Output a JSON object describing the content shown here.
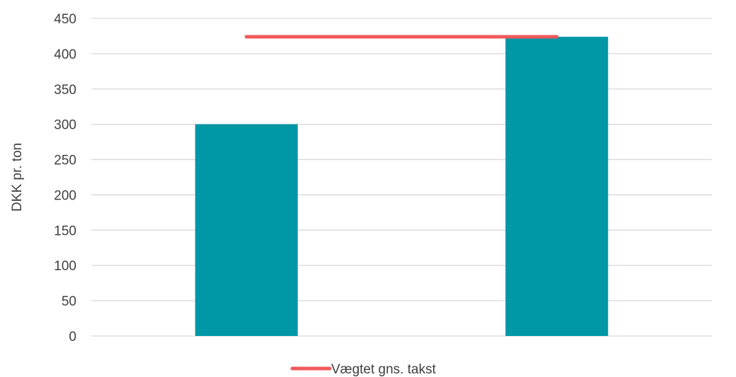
{
  "chart_data": {
    "type": "bar",
    "categories": [
      "",
      ""
    ],
    "series": [
      {
        "values": [
          300,
          424
        ],
        "color": "#0097A7"
      }
    ],
    "reference_line": {
      "name": "Vægtet gns. takst",
      "value": 424,
      "color": "#F05A5B"
    },
    "title": "",
    "xlabel": "",
    "ylabel": "DKK pr. ton",
    "ylim": [
      0,
      450
    ],
    "yticks": [
      0,
      50,
      100,
      150,
      200,
      250,
      300,
      350,
      400,
      450
    ],
    "grid": true,
    "legend_position": "bottom"
  }
}
